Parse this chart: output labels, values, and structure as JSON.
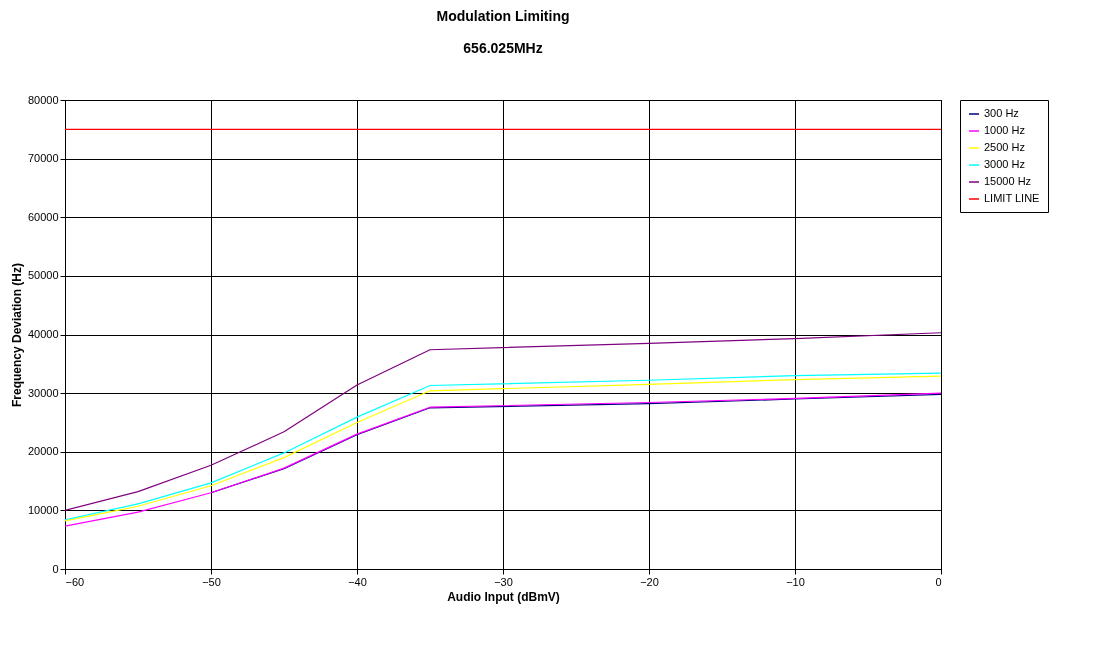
{
  "chart_data": {
    "type": "line",
    "title": "Modulation Limiting",
    "subtitle": "656.025MHz",
    "xlabel": "Audio Input (dBmV)",
    "ylabel": "Frequency Deviation  (Hz)",
    "x": [
      -60,
      -55,
      -50,
      -45,
      -40,
      -35,
      -20,
      -10,
      0
    ],
    "series": [
      {
        "name": "300 Hz",
        "color": "#000080",
        "values": [
          null,
          null,
          13000,
          17100,
          22900,
          27500,
          28200,
          29000,
          29800
        ]
      },
      {
        "name": "1000 Hz",
        "color": "#ff00ff",
        "values": [
          7300,
          9700,
          13000,
          17200,
          23000,
          27600,
          28400,
          29100,
          30000
        ]
      },
      {
        "name": "2500 Hz",
        "color": "#ffff00",
        "values": [
          8200,
          10700,
          14200,
          19000,
          25000,
          30400,
          31500,
          32300,
          32900
        ]
      },
      {
        "name": "3000 Hz",
        "color": "#00ffff",
        "values": [
          8400,
          11100,
          14700,
          19800,
          25900,
          31300,
          32200,
          33000,
          33400
        ]
      },
      {
        "name": "15000 Hz",
        "color": "#800080",
        "values": [
          10000,
          13200,
          17700,
          23400,
          31400,
          37400,
          38500,
          39300,
          40300
        ]
      },
      {
        "name": "LIMIT LINE",
        "color": "#ff0000",
        "x": [
          -60,
          0
        ],
        "values": [
          75000,
          75000
        ]
      }
    ],
    "xlim": [
      -60,
      0
    ],
    "xticks": [
      -60,
      -50,
      -40,
      -30,
      -20,
      -10,
      0
    ],
    "ylim": [
      0,
      80000
    ],
    "yticks": [
      0,
      10000,
      20000,
      30000,
      40000,
      50000,
      60000,
      70000,
      80000
    ],
    "grid": true,
    "legend": "right",
    "marker": "none",
    "line_style": "solid"
  }
}
